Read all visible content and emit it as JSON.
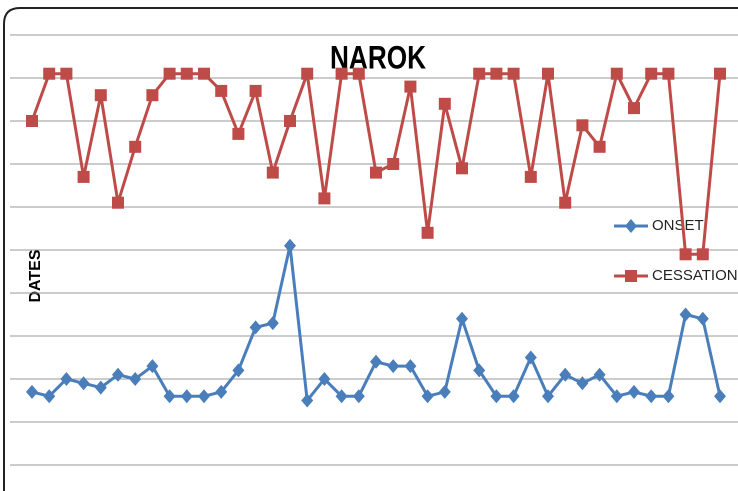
{
  "chart_data": {
    "type": "line",
    "title": "NAROK",
    "ylabel": "DATES",
    "categories": [
      null,
      null,
      null,
      null,
      null,
      null,
      null,
      null,
      null,
      null,
      null,
      null,
      null,
      null,
      null,
      null,
      null,
      null,
      null,
      null,
      null,
      null,
      null,
      null,
      null,
      null,
      null,
      null,
      null,
      null,
      null,
      null,
      null,
      null,
      null,
      null,
      null,
      null,
      null,
      null,
      null
    ],
    "series": [
      {
        "name": "ONSET",
        "color": "#4a7ebb",
        "marker": "diamond",
        "values": [
          1.7,
          1.6,
          2.0,
          1.9,
          1.8,
          2.1,
          2.0,
          2.3,
          1.6,
          1.6,
          1.6,
          1.7,
          2.2,
          3.2,
          3.3,
          5.1,
          1.5,
          2.0,
          1.6,
          1.6,
          2.4,
          2.3,
          2.3,
          1.6,
          1.7,
          3.4,
          2.2,
          1.6,
          1.6,
          2.5,
          1.6,
          2.1,
          1.9,
          2.1,
          1.6,
          1.7,
          1.6,
          1.6,
          3.5,
          3.4,
          1.6
        ]
      },
      {
        "name": "CESSATION",
        "color": "#be4b48",
        "marker": "square",
        "values": [
          8.0,
          9.1,
          9.1,
          6.7,
          8.6,
          6.1,
          7.4,
          8.6,
          9.1,
          9.1,
          9.1,
          8.7,
          7.7,
          8.7,
          6.8,
          8.0,
          9.1,
          6.2,
          9.1,
          9.1,
          6.8,
          7.0,
          8.8,
          5.4,
          8.4,
          6.9,
          9.1,
          9.1,
          9.1,
          6.7,
          9.1,
          6.1,
          7.9,
          7.4,
          9.1,
          8.3,
          9.1,
          9.1,
          4.9,
          4.9,
          9.1
        ]
      }
    ],
    "ylim": [
      0,
      10
    ],
    "yticks": [
      0,
      1,
      2,
      3,
      4,
      5,
      6,
      7,
      8,
      9,
      10
    ],
    "grid": true,
    "legend": "right"
  }
}
